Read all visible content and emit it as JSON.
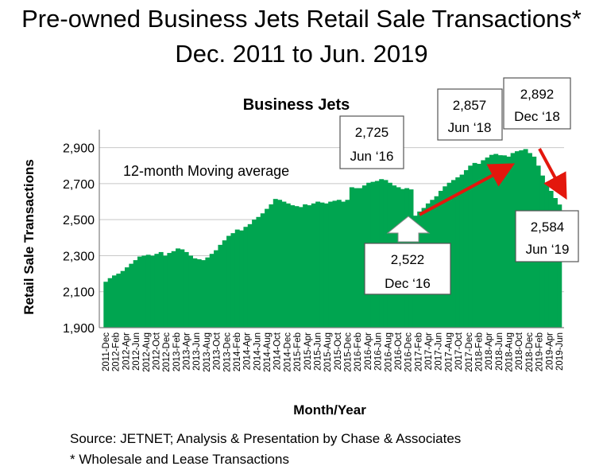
{
  "header": {
    "title_line1": "Pre-owned Business Jets Retail Sale Transactions*",
    "title_line2": "Dec. 2011 to Jun. 2019"
  },
  "footer": {
    "source": "Source: JETNET; Analysis & Presentation by Chase & Associates",
    "note": "* Wholesale and Lease Transactions"
  },
  "chart_data": {
    "type": "area",
    "title": "Business Jets",
    "subtitle": "",
    "xlabel": "Month/Year",
    "ylabel": "Retail Sale Transactions",
    "ylim": [
      1900,
      3000
    ],
    "yticks": [
      1900,
      2100,
      2300,
      2500,
      2700,
      2900
    ],
    "ytick_labels": [
      "1,900",
      "2,100",
      "2,300",
      "2,500",
      "2,700",
      "2,900"
    ],
    "grid": true,
    "fill_color": "#00a550",
    "annotation_main": "12-month Moving average",
    "x_tick_labels": [
      "2011-Dec",
      "2012-Feb",
      "2012-Apr",
      "2012-Jun",
      "2012-Aug",
      "2012-Oct",
      "2012-Dec",
      "2013-Feb",
      "2013-Apr",
      "2013-Jun",
      "2013-Aug",
      "2013-Oct",
      "2013-Dec",
      "2014-Feb",
      "2014-Apr",
      "2014-Jun",
      "2014-Aug",
      "2014-Oct",
      "2014-Dec",
      "2015-Feb",
      "2015-Apr",
      "2015-Jun",
      "2015-Aug",
      "2015-Oct",
      "2015-Dec",
      "2016-Feb",
      "2016-Apr",
      "2016-Jun",
      "2016-Aug",
      "2016-Oct",
      "2016-Dec",
      "2017-Feb",
      "2017-Apr",
      "2017-Jun",
      "2017-Aug",
      "2017-Oct",
      "2017-Dec",
      "2018-Feb",
      "2018-Apr",
      "2018-Jun",
      "2018-Aug",
      "2018-Oct",
      "2018-Dec",
      "2019-Feb",
      "2019-Apr",
      "2019-Jun"
    ],
    "series": [
      {
        "values": [
          2155,
          2175,
          2190,
          2200,
          2215,
          2235,
          2255,
          2275,
          2295,
          2300,
          2305,
          2300,
          2310,
          2320,
          2300,
          2315,
          2325,
          2340,
          2335,
          2320,
          2300,
          2285,
          2280,
          2275,
          2290,
          2310,
          2330,
          2360,
          2385,
          2410,
          2425,
          2445,
          2440,
          2460,
          2475,
          2500,
          2515,
          2535,
          2560,
          2585,
          2615,
          2610,
          2600,
          2590,
          2580,
          2575,
          2570,
          2585,
          2580,
          2590,
          2600,
          2595,
          2590,
          2600,
          2605,
          2610,
          2600,
          2610,
          2680,
          2675,
          2675,
          2690,
          2705,
          2710,
          2715,
          2725,
          2720,
          2705,
          2690,
          2680,
          2670,
          2675,
          2668,
          2522,
          2545,
          2565,
          2590,
          2610,
          2630,
          2660,
          2685,
          2705,
          2720,
          2735,
          2750,
          2775,
          2800,
          2815,
          2810,
          2830,
          2845,
          2860,
          2865,
          2858,
          2857,
          2850,
          2870,
          2880,
          2885,
          2892,
          2870,
          2850,
          2800,
          2745,
          2700,
          2660,
          2620,
          2584
        ]
      }
    ],
    "callouts": [
      {
        "value": "2,725",
        "date": "Jun ‘16"
      },
      {
        "value": "2,522",
        "date": "Dec ‘16"
      },
      {
        "value": "2,857",
        "date": "Jun ‘18"
      },
      {
        "value": "2,892",
        "date": "Dec ‘18"
      },
      {
        "value": "2,584",
        "date": "Jun ‘19"
      }
    ]
  }
}
